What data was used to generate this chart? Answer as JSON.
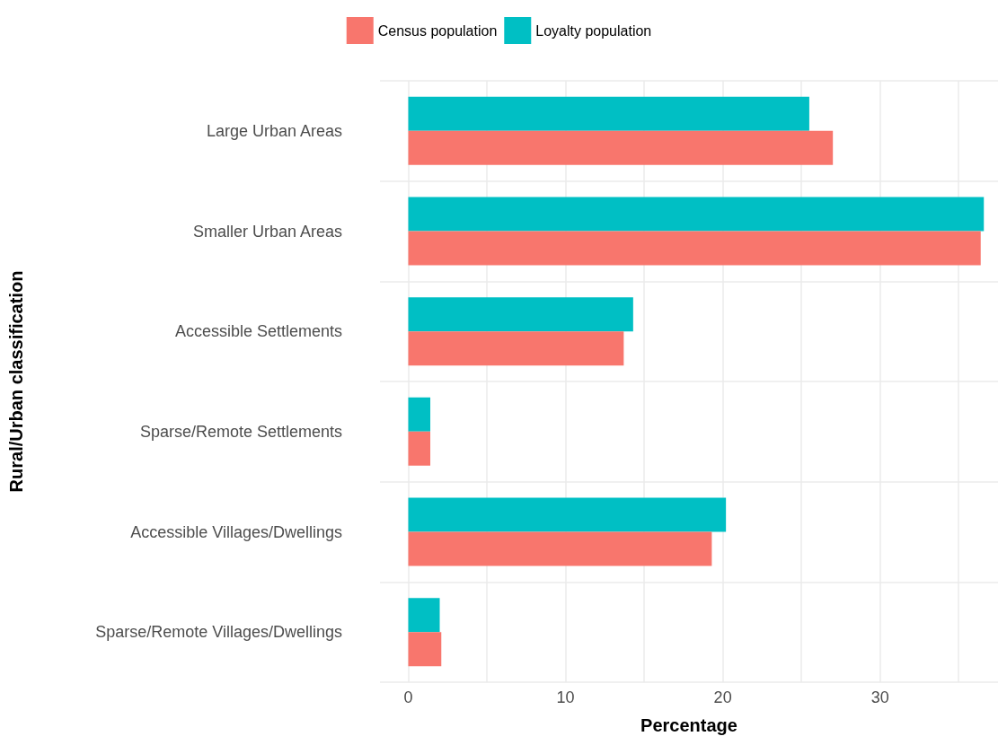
{
  "chart_data": {
    "type": "bar",
    "orientation": "horizontal",
    "xlabel": "Percentage",
    "ylabel": "Rural/Urban classification",
    "categories": [
      "Large Urban Areas",
      "Smaller Urban Areas",
      "Accessible Settlements",
      "Sparse/Remote Settlements",
      "Accessible Villages/Dwellings",
      "Sparse/Remote Villages/Dwellings"
    ],
    "series": [
      {
        "name": "Census population",
        "color": "#f8766d",
        "values": [
          27.0,
          36.4,
          13.7,
          1.4,
          19.3,
          2.1
        ]
      },
      {
        "name": "Loyalty population",
        "color": "#00bfc4",
        "values": [
          25.5,
          36.6,
          14.3,
          1.4,
          20.2,
          2.0
        ]
      }
    ],
    "xlim": [
      -1.8,
      37.5
    ],
    "xticks": [
      0,
      {
        "value": 5,
        "label": null
      },
      10,
      {
        "value": 15,
        "label": null
      },
      20,
      {
        "value": 25,
        "label": null
      },
      30,
      {
        "value": 35,
        "label": null
      }
    ],
    "grid": true,
    "legend": "top"
  }
}
